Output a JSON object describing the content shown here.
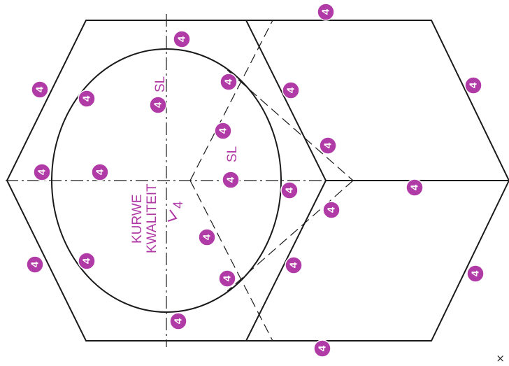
{
  "annotations": {
    "badge_text": "4",
    "sl_label": "SL",
    "surface_label": "4",
    "curve_line1": "KURWE",
    "curve_line2": "KWALITEIT"
  },
  "corner_button": {
    "label": "×"
  },
  "colors": {
    "accent": "#b03aa6",
    "line": "#1a1a1a"
  }
}
